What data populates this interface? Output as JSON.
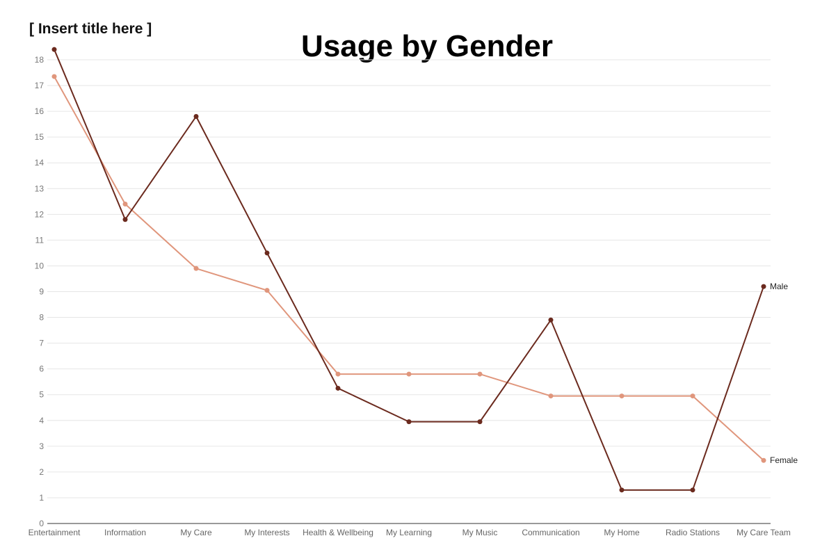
{
  "placeholder_title": "[ Insert title here ]",
  "chart_data": {
    "type": "line",
    "title": "Usage by Gender",
    "xlabel": "",
    "ylabel": "",
    "categories": [
      "Entertainment",
      "Information",
      "My Care",
      "My Interests",
      "Health & Wellbeing",
      "My Learning",
      "My Music",
      "Communication",
      "My Home",
      "Radio Stations",
      "My Care Team"
    ],
    "ylim": [
      0,
      18
    ],
    "yticks": [
      0,
      1,
      2,
      3,
      4,
      5,
      6,
      7,
      8,
      9,
      10,
      11,
      12,
      13,
      14,
      15,
      16,
      17,
      18
    ],
    "grid": true,
    "legend": "end-of-line labels",
    "series": [
      {
        "name": "Male",
        "color": "#6b2a1e",
        "values": [
          18.4,
          11.8,
          15.8,
          10.5,
          5.25,
          3.95,
          3.95,
          7.9,
          1.3,
          1.3,
          9.2
        ]
      },
      {
        "name": "Female",
        "color": "#e0967c",
        "values": [
          17.35,
          12.4,
          9.9,
          9.05,
          5.8,
          5.8,
          5.8,
          4.95,
          4.95,
          4.95,
          2.45
        ]
      }
    ]
  }
}
